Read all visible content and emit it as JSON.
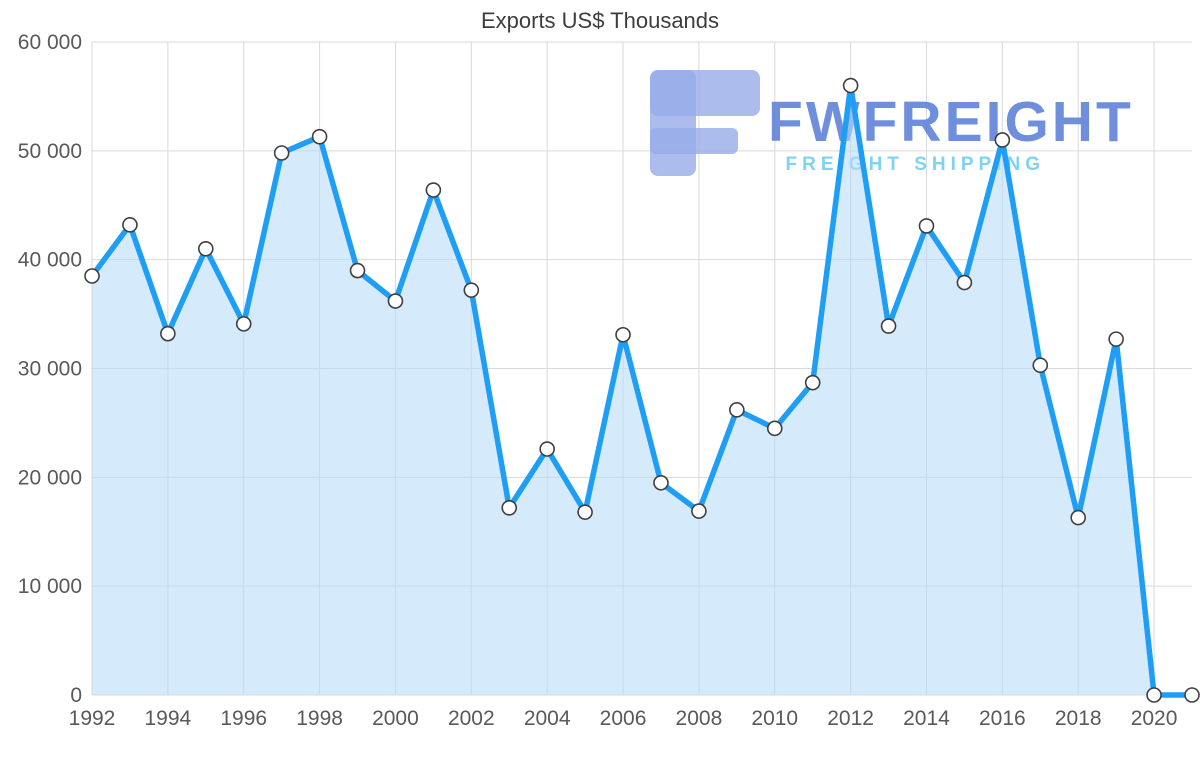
{
  "chart_data": {
    "type": "area",
    "title": "Exports US$ Thousands",
    "xlabel": "",
    "ylabel": "",
    "x": [
      1992,
      1993,
      1994,
      1995,
      1996,
      1997,
      1998,
      1999,
      2000,
      2001,
      2002,
      2003,
      2004,
      2005,
      2006,
      2007,
      2008,
      2009,
      2010,
      2011,
      2012,
      2013,
      2014,
      2015,
      2016,
      2017,
      2018,
      2019,
      2020,
      2021
    ],
    "values": [
      38500,
      43200,
      33200,
      41000,
      34100,
      49800,
      51300,
      39000,
      36200,
      46400,
      37200,
      17200,
      22600,
      16800,
      33100,
      19500,
      16900,
      26200,
      24500,
      28700,
      56000,
      33900,
      43100,
      37900,
      51000,
      30300,
      16300,
      32700,
      0,
      0
    ],
    "xlim": [
      1992,
      2021
    ],
    "ylim": [
      0,
      60000
    ],
    "xticks": [
      1992,
      1994,
      1996,
      1998,
      2000,
      2002,
      2004,
      2006,
      2008,
      2010,
      2012,
      2014,
      2016,
      2018,
      2020
    ],
    "yticks": [
      0,
      10000,
      20000,
      30000,
      40000,
      50000,
      60000
    ],
    "ytick_labels": [
      "0",
      "10 000",
      "20 000",
      "30 000",
      "40 000",
      "50 000",
      "60 000"
    ],
    "grid": true,
    "legend": false,
    "marker": "circle",
    "colors": {
      "line": "#1e9ef4",
      "area_fill": "#b9dcf6",
      "marker_fill": "#ffffff",
      "marker_stroke": "#3f3f3f",
      "grid": "#d9d9d9",
      "axis_text": "#595959",
      "title_text": "#3d3d3d"
    }
  },
  "watermark": {
    "brand": "FWFREIGHT",
    "tagline": "FREIGHT SHIPPING",
    "logo_color": "#97abe8",
    "brand_color": "#5c80d8",
    "tagline_color": "#7fd2f2"
  }
}
